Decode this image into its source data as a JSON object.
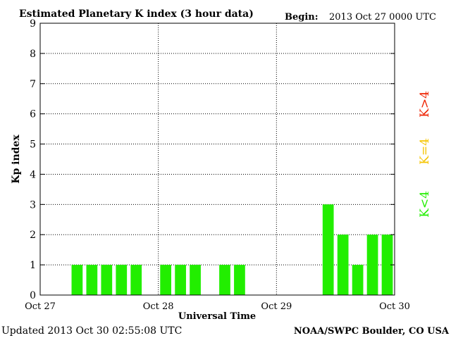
{
  "chart_data": {
    "type": "bar",
    "title": "Estimated Planetary K index (3 hour data)",
    "begin_label": "Begin:",
    "begin_value": "2013 Oct 27 0000 UTC",
    "xlabel": "Universal Time",
    "ylabel": "Kp index",
    "ylim": [
      0,
      9
    ],
    "yticks": [
      "0",
      "1",
      "2",
      "3",
      "4",
      "5",
      "6",
      "7",
      "8",
      "9"
    ],
    "xticks": [
      "Oct 27",
      "Oct 28",
      "Oct 29",
      "Oct 30"
    ],
    "grid": true,
    "values": [
      0,
      0,
      1,
      1,
      1,
      1,
      1,
      0,
      1,
      1,
      1,
      0,
      1,
      1,
      0,
      0,
      0,
      0,
      0,
      3,
      2,
      1,
      2,
      2
    ],
    "bar_color": "#22ee00",
    "legend": [
      {
        "label": "K<4",
        "color": "#22ee00"
      },
      {
        "label": "K=4",
        "color": "#f5c400"
      },
      {
        "label": "K>4",
        "color": "#ee2200"
      }
    ]
  },
  "footer": {
    "updated": "Updated 2013 Oct 30 02:55:08 UTC",
    "credit": "NOAA/SWPC Boulder, CO USA"
  }
}
